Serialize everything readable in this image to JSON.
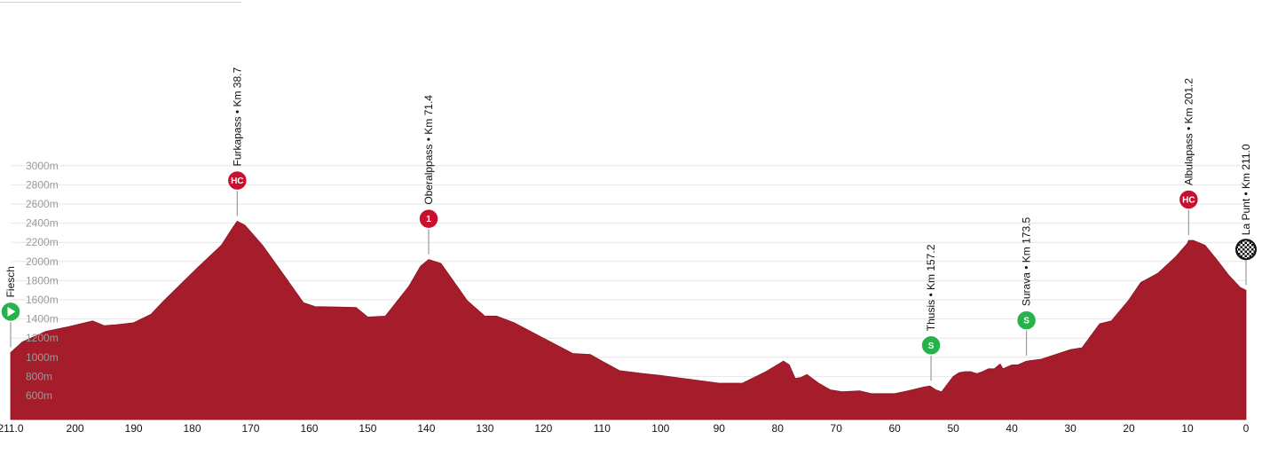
{
  "chart_data": {
    "type": "area",
    "x_axis": {
      "reversed": true,
      "range": [
        211,
        0
      ],
      "ticks": [
        "211.0",
        "200",
        "190",
        "180",
        "170",
        "160",
        "150",
        "140",
        "130",
        "120",
        "110",
        "100",
        "90",
        "80",
        "70",
        "60",
        "50",
        "40",
        "30",
        "20",
        "10",
        "0"
      ]
    },
    "y_axis": {
      "range": [
        400,
        3000
      ],
      "ticks": [
        "600m",
        "800m",
        "1000m",
        "1200m",
        "1400m",
        "1600m",
        "1800m",
        "2000m",
        "2200m",
        "2400m",
        "2600m",
        "2800m",
        "3000m"
      ]
    },
    "grid": "horizontal",
    "fill_color": "#a51c2b",
    "profile": {
      "x": [
        211,
        209,
        205,
        201,
        197,
        195,
        193,
        190,
        187,
        185,
        182,
        179,
        175,
        173,
        172.3,
        171,
        168,
        164,
        161,
        159,
        152,
        150,
        147,
        143,
        141,
        139.6,
        137.5,
        133,
        130,
        128,
        125,
        120,
        115,
        112,
        110,
        107,
        103,
        100,
        95,
        90,
        86,
        82,
        79,
        78,
        77,
        76,
        75,
        73,
        71,
        69,
        66,
        64,
        60,
        57,
        55,
        54,
        53,
        52,
        50,
        49,
        48,
        47,
        46,
        45,
        44,
        43,
        42,
        41.5,
        40,
        39,
        37.5,
        35,
        30,
        28,
        25,
        23,
        20,
        18,
        15,
        12,
        10,
        9.8,
        9,
        7,
        5,
        3,
        1,
        0
      ],
      "elevation": [
        1050,
        1160,
        1270,
        1320,
        1380,
        1330,
        1340,
        1360,
        1450,
        1580,
        1760,
        1940,
        2170,
        2360,
        2420,
        2380,
        2170,
        1830,
        1570,
        1530,
        1520,
        1420,
        1430,
        1740,
        1950,
        2020,
        1980,
        1590,
        1430,
        1430,
        1360,
        1200,
        1040,
        1030,
        960,
        860,
        830,
        810,
        770,
        730,
        730,
        850,
        960,
        920,
        780,
        790,
        820,
        730,
        660,
        640,
        650,
        620,
        620,
        660,
        690,
        700,
        660,
        640,
        800,
        840,
        850,
        850,
        830,
        850,
        880,
        880,
        930,
        880,
        920,
        920,
        960,
        980,
        1080,
        1100,
        1350,
        1380,
        1600,
        1780,
        1880,
        2050,
        2190,
        2220,
        2220,
        2170,
        2020,
        1860,
        1730,
        1700
      ]
    },
    "waypoints": [
      {
        "label": "Fiesch",
        "km": 211,
        "elevation": 1050,
        "badge": "start",
        "badge_text": "",
        "color": "#27b34a"
      },
      {
        "label": "Furkapass • Km 38.7",
        "km": 172.3,
        "elevation": 2420,
        "badge": "climb",
        "badge_text": "HC",
        "color": "#c8102e"
      },
      {
        "label": "Oberalppass • Km 71.4",
        "km": 139.6,
        "elevation": 2020,
        "badge": "climb",
        "badge_text": "1",
        "color": "#c8102e"
      },
      {
        "label": "Thusis • Km 157.2",
        "km": 53.8,
        "elevation": 700,
        "badge": "sprint",
        "badge_text": "S",
        "color": "#27b34a"
      },
      {
        "label": "Surava • Km 173.5",
        "km": 37.5,
        "elevation": 960,
        "badge": "sprint",
        "badge_text": "S",
        "color": "#27b34a"
      },
      {
        "label": "Albulapass • Km 201.2",
        "km": 9.8,
        "elevation": 2220,
        "badge": "climb",
        "badge_text": "HC",
        "color": "#c8102e"
      },
      {
        "label": "La Punt • Km 211.0",
        "km": 0,
        "elevation": 1700,
        "badge": "finish",
        "badge_text": "",
        "color": "#111111"
      }
    ]
  }
}
